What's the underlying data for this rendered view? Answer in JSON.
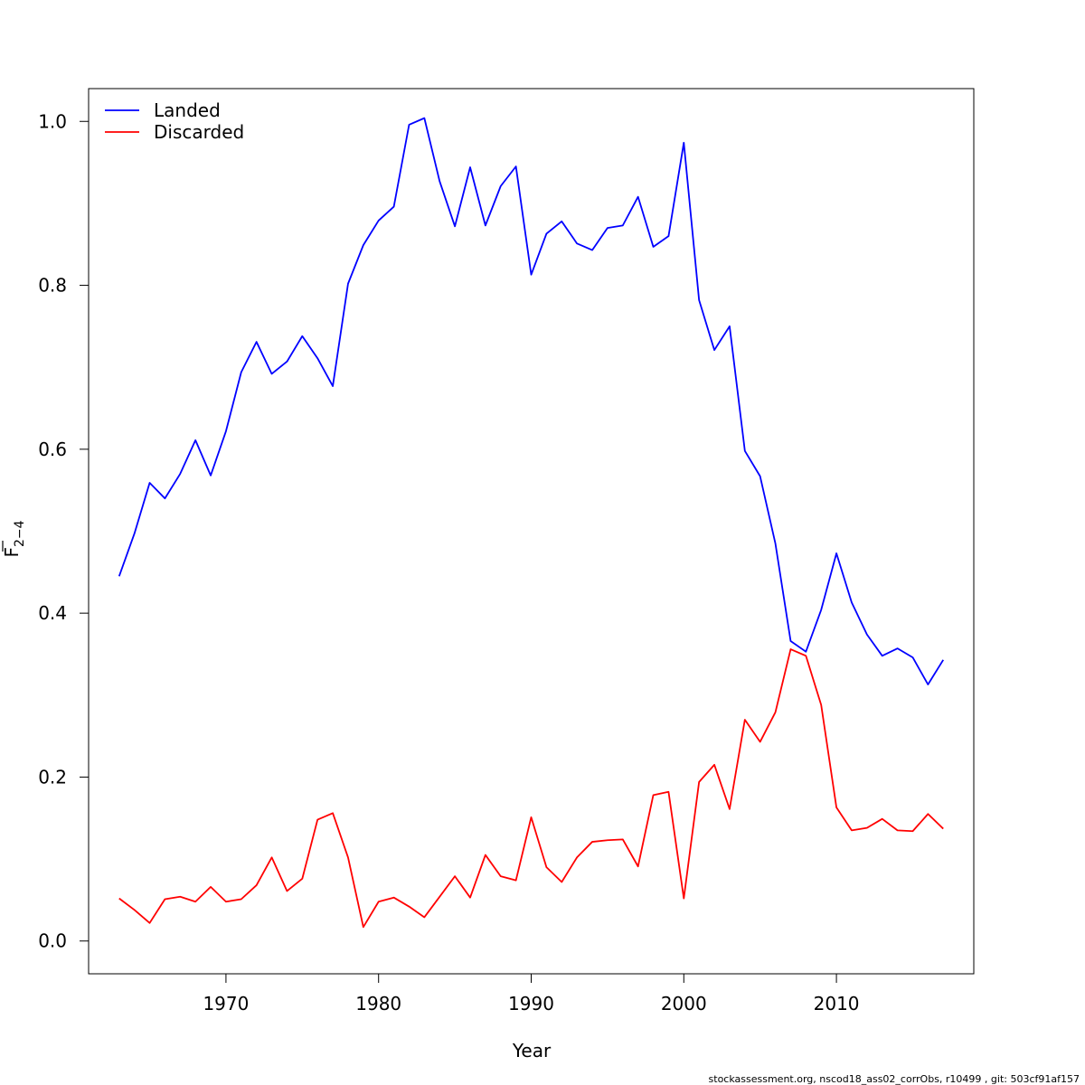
{
  "chart_data": {
    "type": "line",
    "title": "",
    "xlabel": "Year",
    "ylabel": "F",
    "ylabel_subscript": "2−4",
    "xlim": [
      1961,
      2019
    ],
    "ylim": [
      -0.04,
      1.04
    ],
    "xticks": [
      1970,
      1980,
      1990,
      2000,
      2010
    ],
    "yticks": [
      0.0,
      0.2,
      0.4,
      0.6,
      0.8,
      1.0
    ],
    "ytick_labels": [
      "0.0",
      "0.2",
      "0.4",
      "0.6",
      "0.8",
      "1.0"
    ],
    "legend_position": "top-left",
    "grid": false,
    "x": [
      1963,
      1964,
      1965,
      1966,
      1967,
      1968,
      1969,
      1970,
      1971,
      1972,
      1973,
      1974,
      1975,
      1976,
      1977,
      1978,
      1979,
      1980,
      1981,
      1982,
      1983,
      1984,
      1985,
      1986,
      1987,
      1988,
      1989,
      1990,
      1991,
      1992,
      1993,
      1994,
      1995,
      1996,
      1997,
      1998,
      1999,
      2000,
      2001,
      2002,
      2003,
      2004,
      2005,
      2006,
      2007,
      2008,
      2009,
      2010,
      2011,
      2012,
      2013,
      2014,
      2015,
      2016,
      2017
    ],
    "series": [
      {
        "name": "Landed",
        "color": "#0000ff",
        "values": [
          0.445,
          0.497,
          0.559,
          0.54,
          0.57,
          0.611,
          0.568,
          0.622,
          0.694,
          0.731,
          0.692,
          0.707,
          0.738,
          0.711,
          0.677,
          0.802,
          0.849,
          0.879,
          0.896,
          0.996,
          1.004,
          0.927,
          0.872,
          0.944,
          0.873,
          0.921,
          0.945,
          0.813,
          0.863,
          0.878,
          0.851,
          0.843,
          0.87,
          0.873,
          0.908,
          0.847,
          0.86,
          0.974,
          0.782,
          0.721,
          0.75,
          0.598,
          0.567,
          0.485,
          0.366,
          0.353,
          0.404,
          0.473,
          0.413,
          0.374,
          0.348,
          0.357,
          0.346,
          0.313,
          0.343
        ]
      },
      {
        "name": "Discarded",
        "color": "#ff0000",
        "values": [
          0.052,
          0.038,
          0.022,
          0.051,
          0.054,
          0.048,
          0.066,
          0.048,
          0.051,
          0.068,
          0.102,
          0.061,
          0.076,
          0.148,
          0.156,
          0.102,
          0.017,
          0.048,
          0.053,
          0.042,
          0.029,
          0.054,
          0.079,
          0.053,
          0.105,
          0.079,
          0.074,
          0.151,
          0.09,
          0.072,
          0.102,
          0.121,
          0.123,
          0.124,
          0.091,
          0.178,
          0.182,
          0.052,
          0.194,
          0.215,
          0.161,
          0.27,
          0.243,
          0.279,
          0.356,
          0.348,
          0.288,
          0.163,
          0.135,
          0.138,
          0.149,
          0.135,
          0.134,
          0.155,
          0.137
        ]
      }
    ]
  },
  "footer": "stockassessment.org, nscod18_ass02_corrObs, r10499 , git: 503cf91af157"
}
